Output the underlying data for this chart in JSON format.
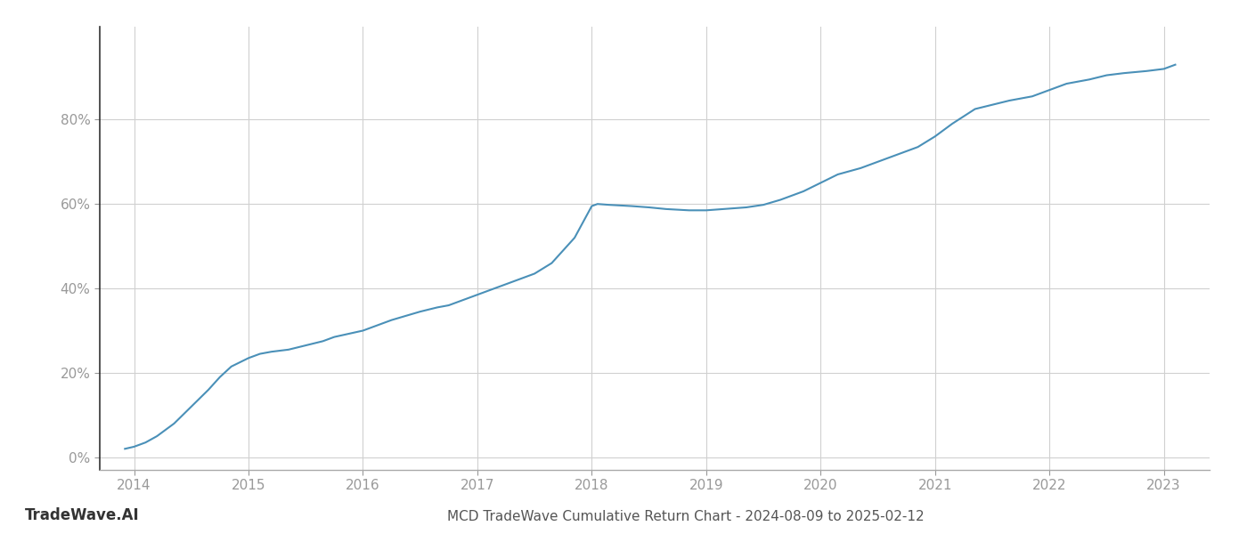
{
  "title": "MCD TradeWave Cumulative Return Chart - 2024-08-09 to 2025-02-12",
  "watermark": "TradeWave.AI",
  "line_color": "#4a90b8",
  "background_color": "#ffffff",
  "grid_color": "#d0d0d0",
  "x_values": [
    2013.92,
    2014.0,
    2014.1,
    2014.2,
    2014.35,
    2014.5,
    2014.65,
    2014.75,
    2014.85,
    2015.0,
    2015.1,
    2015.2,
    2015.35,
    2015.5,
    2015.65,
    2015.75,
    2016.0,
    2016.25,
    2016.5,
    2016.65,
    2016.75,
    2017.0,
    2017.15,
    2017.35,
    2017.5,
    2017.65,
    2017.85,
    2018.0,
    2018.05,
    2018.15,
    2018.35,
    2018.5,
    2018.65,
    2018.85,
    2019.0,
    2019.15,
    2019.35,
    2019.5,
    2019.65,
    2019.85,
    2020.0,
    2020.15,
    2020.35,
    2020.5,
    2020.65,
    2020.85,
    2021.0,
    2021.15,
    2021.35,
    2021.5,
    2021.65,
    2021.85,
    2022.0,
    2022.15,
    2022.35,
    2022.5,
    2022.65,
    2022.85,
    2023.0,
    2023.1
  ],
  "y_values": [
    2.0,
    2.5,
    3.5,
    5.0,
    8.0,
    12.0,
    16.0,
    19.0,
    21.5,
    23.5,
    24.5,
    25.0,
    25.5,
    26.5,
    27.5,
    28.5,
    30.0,
    32.5,
    34.5,
    35.5,
    36.0,
    38.5,
    40.0,
    42.0,
    43.5,
    46.0,
    52.0,
    59.5,
    60.0,
    59.8,
    59.5,
    59.2,
    58.8,
    58.5,
    58.5,
    58.8,
    59.2,
    59.8,
    61.0,
    63.0,
    65.0,
    67.0,
    68.5,
    70.0,
    71.5,
    73.5,
    76.0,
    79.0,
    82.5,
    83.5,
    84.5,
    85.5,
    87.0,
    88.5,
    89.5,
    90.5,
    91.0,
    91.5,
    92.0,
    93.0
  ],
  "xlim": [
    2013.7,
    2023.4
  ],
  "ylim": [
    -3,
    102
  ],
  "yticks": [
    0,
    20,
    40,
    60,
    80
  ],
  "xticks": [
    2014,
    2015,
    2016,
    2017,
    2018,
    2019,
    2020,
    2021,
    2022,
    2023
  ],
  "line_width": 1.5,
  "figsize": [
    14,
    6
  ],
  "dpi": 100,
  "spine_color": "#aaaaaa",
  "left_spine_color": "#333333",
  "tick_color": "#999999",
  "title_color": "#555555",
  "watermark_color": "#333333",
  "title_fontsize": 11,
  "watermark_fontsize": 12,
  "tick_fontsize": 11
}
